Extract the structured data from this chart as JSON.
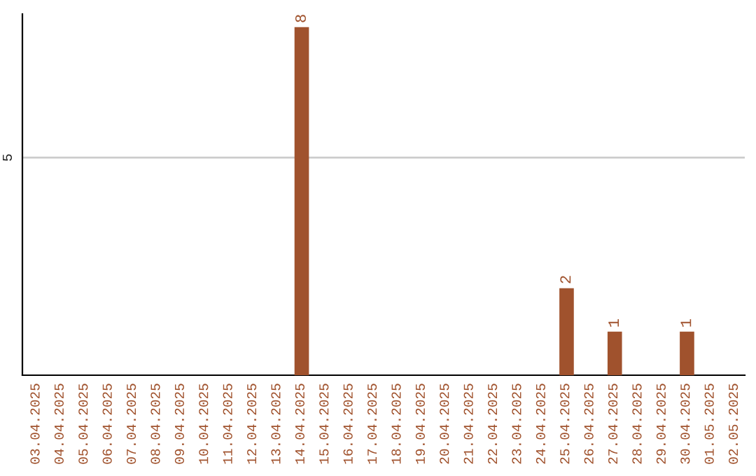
{
  "chart_data": {
    "type": "bar",
    "categories": [
      "03.04.2025",
      "04.04.2025",
      "05.04.2025",
      "06.04.2025",
      "07.04.2025",
      "08.04.2025",
      "09.04.2025",
      "10.04.2025",
      "11.04.2025",
      "12.04.2025",
      "13.04.2025",
      "14.04.2025",
      "15.04.2025",
      "16.04.2025",
      "17.04.2025",
      "18.04.2025",
      "19.04.2025",
      "20.04.2025",
      "21.04.2025",
      "22.04.2025",
      "23.04.2025",
      "24.04.2025",
      "25.04.2025",
      "26.04.2025",
      "27.04.2025",
      "28.04.2025",
      "29.04.2025",
      "30.04.2025",
      "01.05.2025",
      "02.05.2025"
    ],
    "values": [
      null,
      null,
      null,
      null,
      null,
      null,
      null,
      null,
      null,
      null,
      null,
      8,
      null,
      null,
      null,
      null,
      null,
      null,
      null,
      null,
      null,
      null,
      2,
      null,
      1,
      null,
      null,
      1,
      null,
      null
    ],
    "value_labels": [
      null,
      null,
      null,
      null,
      null,
      null,
      null,
      null,
      null,
      null,
      null,
      "8",
      null,
      null,
      null,
      null,
      null,
      null,
      null,
      null,
      null,
      null,
      "2",
      null,
      "1",
      null,
      null,
      "1",
      null,
      null
    ],
    "color": "#a0522d",
    "ylim": [
      0,
      8.3
    ],
    "yticks": [
      5
    ],
    "grid": "y"
  }
}
